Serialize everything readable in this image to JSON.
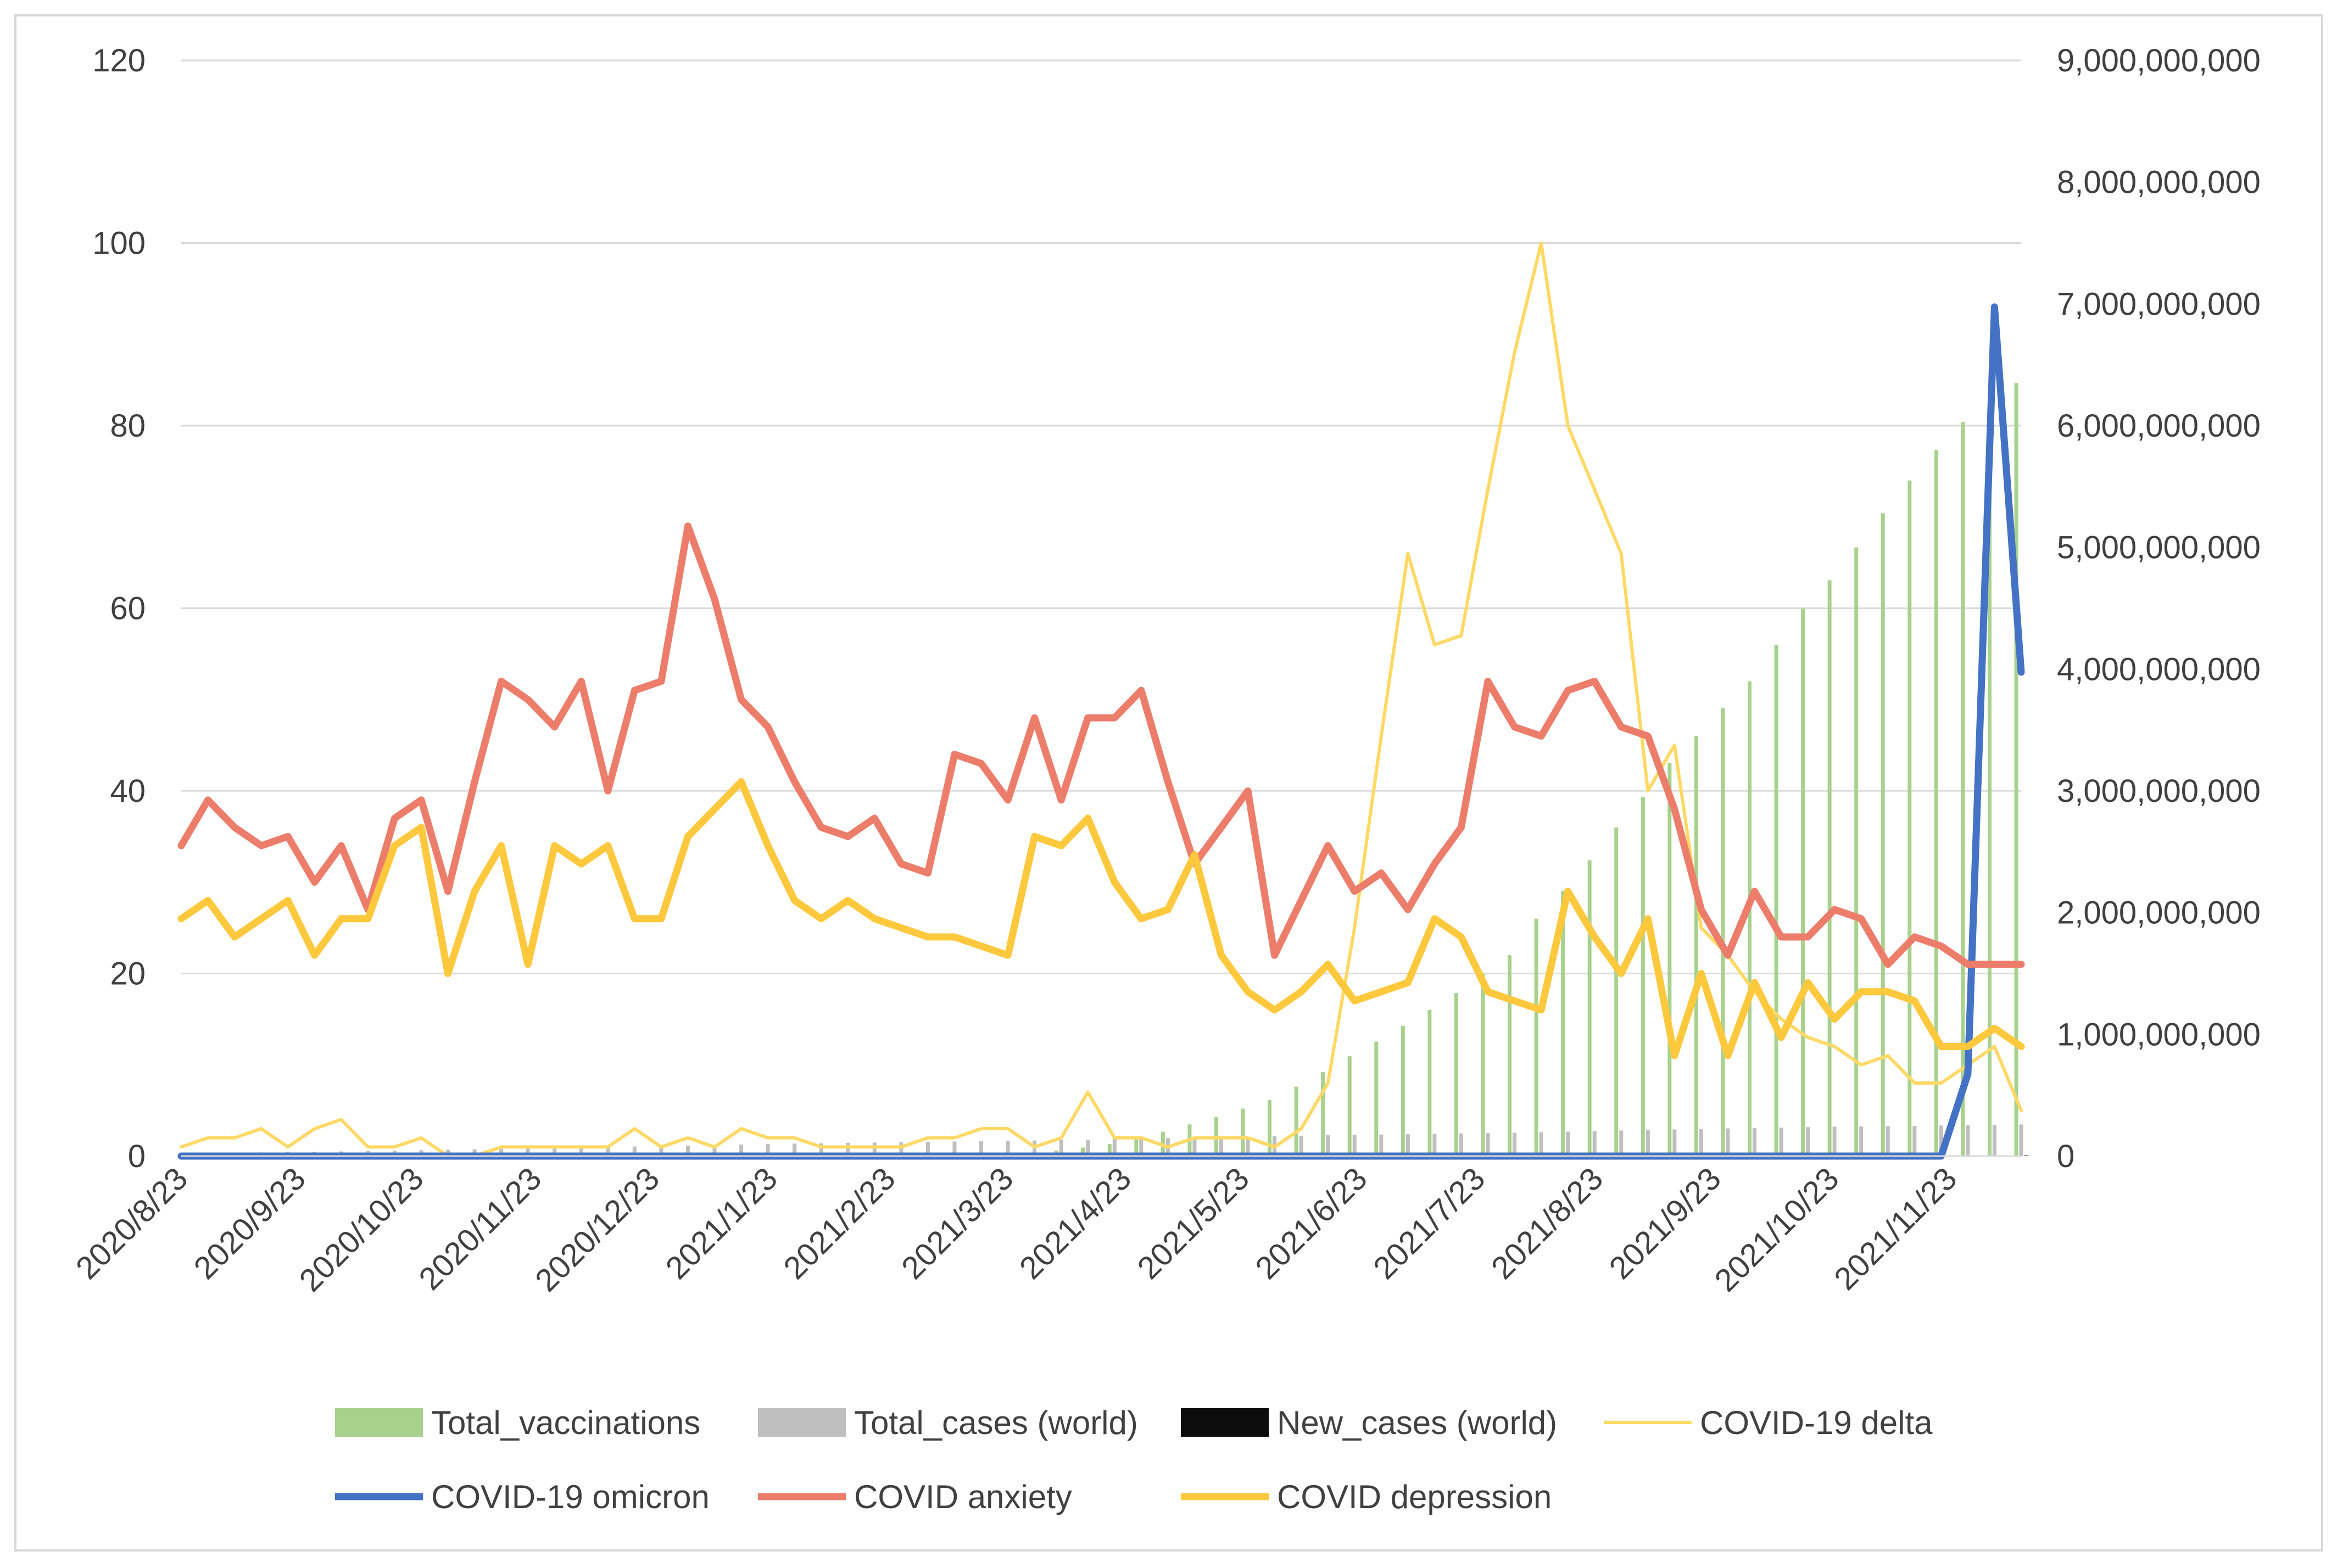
{
  "chart_data": {
    "type": "bar+line",
    "title": "",
    "xlabel": "",
    "ylabel": "",
    "ylim": [
      0,
      120
    ],
    "y2lim": [
      0,
      9000000000
    ],
    "left_ticks": [
      "0",
      "20",
      "40",
      "60",
      "80",
      "100",
      "120"
    ],
    "right_ticks": [
      "0",
      "1,000,000,000",
      "2,000,000,000",
      "3,000,000,000",
      "4,000,000,000",
      "5,000,000,000",
      "6,000,000,000",
      "7,000,000,000",
      "8,000,000,000",
      "9,000,000,000"
    ],
    "x_tick_labels": [
      "2020/8/23",
      "2020/9/23",
      "2020/10/23",
      "2020/11/23",
      "2020/12/23",
      "2021/1/23",
      "2021/2/23",
      "2021/3/23",
      "2021/4/23",
      "2021/5/23",
      "2021/6/23",
      "2021/7/23",
      "2021/8/23",
      "2021/9/23",
      "2021/10/23",
      "2021/11/23"
    ],
    "x_points": 70,
    "bar_series": [
      {
        "name": "Total_vaccinations",
        "color": "#a9d18e",
        "axis": "right",
        "values": [
          0,
          0,
          0,
          0,
          0,
          0,
          0,
          0,
          0,
          0,
          0,
          0,
          0,
          0,
          0,
          0,
          0,
          0,
          0,
          0,
          0,
          0,
          0,
          0,
          0,
          0,
          0,
          0,
          0,
          0,
          0,
          10000000,
          25000000,
          45000000,
          70000000,
          100000000,
          160000000,
          200000000,
          260000000,
          320000000,
          390000000,
          460000000,
          570000000,
          690000000,
          820000000,
          940000000,
          1070000000,
          1200000000,
          1340000000,
          1500000000,
          1650000000,
          1950000000,
          2180000000,
          2430000000,
          2700000000,
          2950000000,
          3230000000,
          3450000000,
          3680000000,
          3900000000,
          4200000000,
          4500000000,
          4730000000,
          5000000000,
          5280000000,
          5550000000,
          5800000000,
          6030000000,
          6180000000,
          6350000000
        ]
      },
      {
        "name": "Total_cases (world)",
        "color": "#bfbfbf",
        "axis": "right",
        "values": [
          23000000,
          25500000,
          28000000,
          30500000,
          33000000,
          35500000,
          38500000,
          41500000,
          44500000,
          48000000,
          52000000,
          56000000,
          59500000,
          63000000,
          66500000,
          70500000,
          74500000,
          78000000,
          82000000,
          86500000,
          91000000,
          95000000,
          99000000,
          102500000,
          106000000,
          109000000,
          112000000,
          115000000,
          117500000,
          120000000,
          122500000,
          125500000,
          128500000,
          131500000,
          135000000,
          139000000,
          143000000,
          147500000,
          152000000,
          156000000,
          160000000,
          164000000,
          167500000,
          171000000,
          174000000,
          177000000,
          180000000,
          183000000,
          186000000,
          189500000,
          193000000,
          197000000,
          201000000,
          205500000,
          210000000,
          214500000,
          219000000,
          223000000,
          227000000,
          231000000,
          234500000,
          238000000,
          241000000,
          243500000,
          246000000,
          248500000,
          251000000,
          254000000,
          257000000,
          260000000
        ]
      },
      {
        "name": "New_cases (world)",
        "color": "#0d0d0d",
        "axis": "right",
        "values": [
          1800000,
          1900000,
          2000000,
          2100000,
          2200000,
          2300000,
          2600000,
          2900000,
          3300000,
          3800000,
          4000000,
          4100000,
          4200000,
          4300000,
          4400000,
          4500000,
          4400000,
          4000000,
          3600000,
          3300000,
          3000000,
          2800000,
          2700000,
          2700000,
          2800000,
          3200000,
          3700000,
          4200000,
          4600000,
          5100000,
          5600000,
          5700000,
          5500000,
          4800000,
          4000000,
          3500000,
          3000000,
          2700000,
          2600000,
          2700000,
          3000000,
          3400000,
          3800000,
          4100000,
          4300000,
          4500000,
          4500000,
          4400000,
          4200000,
          4100000,
          3900000,
          3600000,
          3300000,
          3100000,
          3000000,
          2900000,
          2800000,
          2900000,
          3000000,
          3100000,
          3200000,
          3300000,
          3400000,
          3500000,
          3600000,
          3700000,
          3900000,
          4200000,
          4500000,
          4800000
        ]
      }
    ],
    "line_series": [
      {
        "name": "COVID-19 delta",
        "color": "#ffd966",
        "width": "thin",
        "axis": "left",
        "values": [
          1,
          2,
          2,
          3,
          1,
          3,
          4,
          1,
          1,
          2,
          0,
          0,
          1,
          1,
          1,
          1,
          1,
          3,
          1,
          2,
          1,
          3,
          2,
          2,
          1,
          1,
          1,
          1,
          2,
          2,
          3,
          3,
          1,
          2,
          7,
          2,
          2,
          1,
          2,
          2,
          2,
          1,
          3,
          8,
          25,
          46,
          66,
          56,
          57,
          73,
          88,
          100,
          80,
          73,
          66,
          40,
          45,
          25,
          22,
          18,
          15,
          13,
          12,
          10,
          11,
          8,
          8,
          10,
          12,
          5
        ]
      },
      {
        "name": "COVID-19 omicron",
        "color": "#4472c4",
        "width": "thick",
        "axis": "left",
        "values": [
          0,
          0,
          0,
          0,
          0,
          0,
          0,
          0,
          0,
          0,
          0,
          0,
          0,
          0,
          0,
          0,
          0,
          0,
          0,
          0,
          0,
          0,
          0,
          0,
          0,
          0,
          0,
          0,
          0,
          0,
          0,
          0,
          0,
          0,
          0,
          0,
          0,
          0,
          0,
          0,
          0,
          0,
          0,
          0,
          0,
          0,
          0,
          0,
          0,
          0,
          0,
          0,
          0,
          0,
          0,
          0,
          0,
          0,
          0,
          0,
          0,
          0,
          0,
          0,
          0,
          0,
          0,
          9,
          93,
          53
        ]
      },
      {
        "name": "COVID anxiety",
        "color": "#ed7d6b",
        "width": "thick",
        "axis": "left",
        "values": [
          34,
          39,
          36,
          34,
          35,
          30,
          34,
          27,
          37,
          39,
          29,
          41,
          52,
          50,
          47,
          52,
          40,
          51,
          52,
          69,
          61,
          50,
          47,
          41,
          36,
          35,
          37,
          32,
          31,
          44,
          43,
          39,
          48,
          39,
          48,
          48,
          51,
          41,
          32,
          36,
          40,
          22,
          28,
          34,
          29,
          31,
          27,
          32,
          36,
          52,
          47,
          46,
          51,
          52,
          47,
          46,
          38,
          27,
          22,
          29,
          24,
          24,
          27,
          26,
          21,
          24,
          23,
          21,
          21,
          21
        ]
      },
      {
        "name": "COVID depression",
        "color": "#ffc83d",
        "width": "thick",
        "axis": "left",
        "values": [
          26,
          28,
          24,
          26,
          28,
          22,
          26,
          26,
          34,
          36,
          20,
          29,
          34,
          21,
          34,
          32,
          34,
          26,
          26,
          35,
          38,
          41,
          34,
          28,
          26,
          28,
          26,
          25,
          24,
          24,
          23,
          22,
          35,
          34,
          37,
          30,
          26,
          27,
          33,
          22,
          18,
          16,
          18,
          21,
          17,
          18,
          19,
          26,
          24,
          18,
          17,
          16,
          29,
          24,
          20,
          26,
          11,
          20,
          11,
          19,
          13,
          19,
          15,
          18,
          18,
          17,
          12,
          12,
          14,
          12
        ]
      }
    ],
    "legend": {
      "placement": "bottom",
      "row1": [
        "Total_vaccinations",
        "Total_cases (world)",
        "New_cases (world)",
        "COVID-19 delta"
      ],
      "row2": [
        "COVID-19 omicron",
        "COVID anxiety",
        "COVID depression"
      ]
    }
  }
}
